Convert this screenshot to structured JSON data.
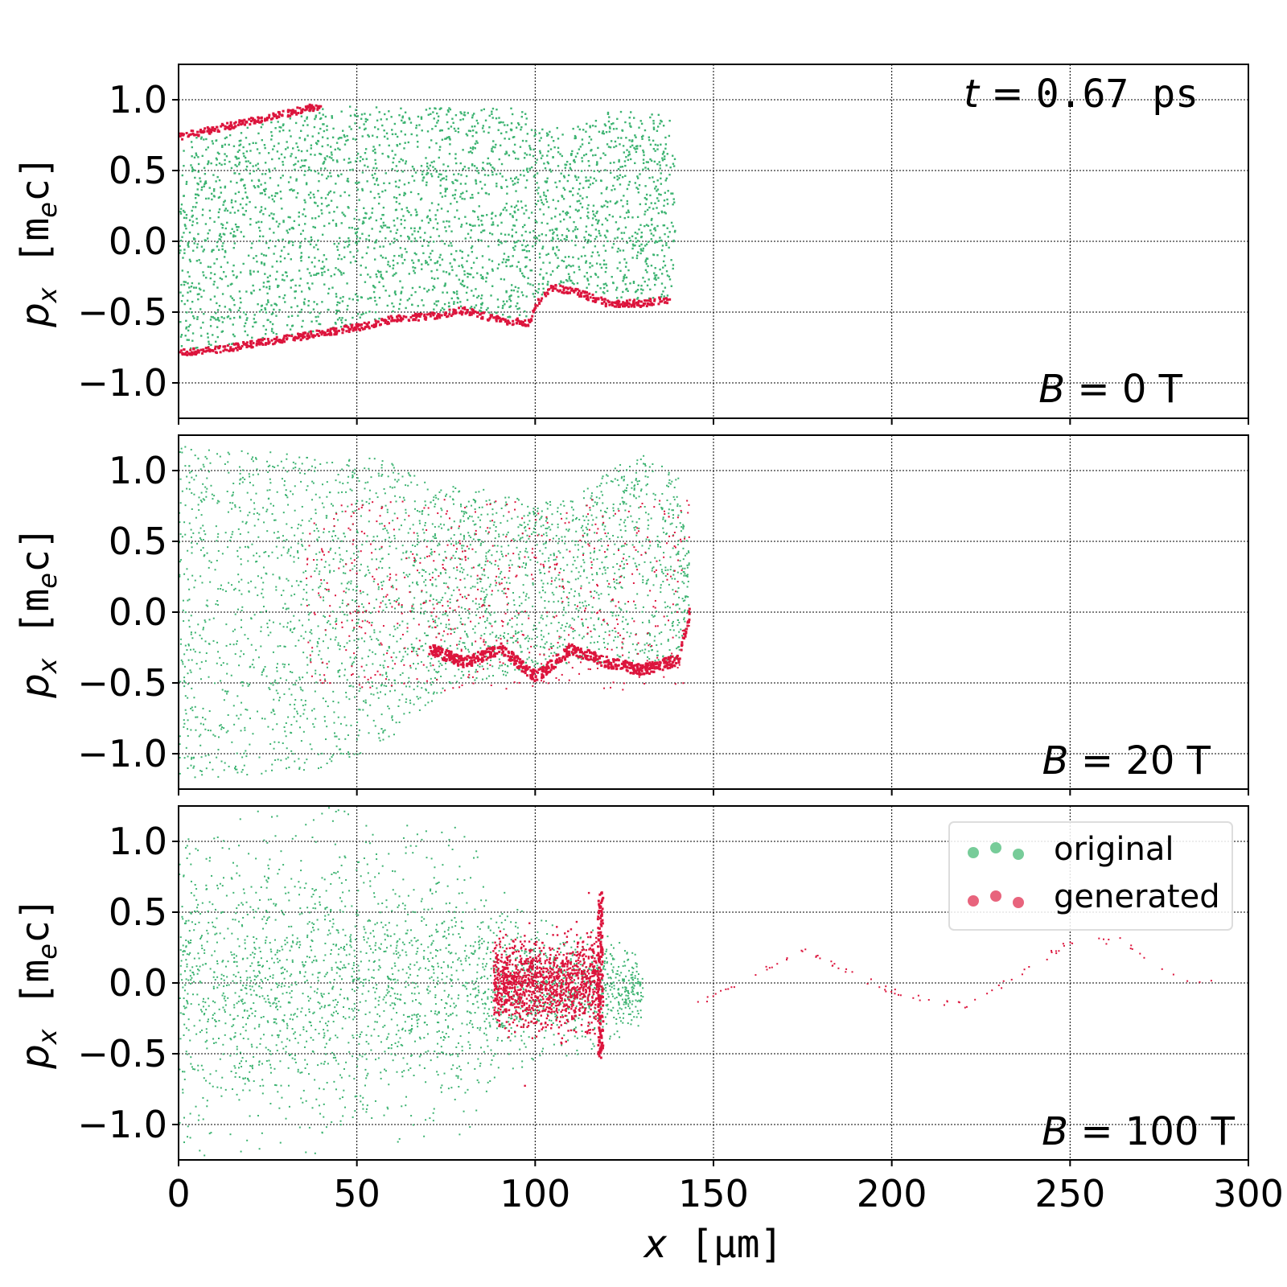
{
  "figure": {
    "time_label": {
      "lhs": "t",
      "eq": " = ",
      "value": "0.67 ps"
    },
    "xlabel": {
      "symbol": "x",
      "unit": "μm"
    },
    "ylabel": {
      "symbol": "p",
      "sub": "x",
      "unit_pre": "m",
      "unit_sub": "e",
      "unit_post": "c"
    },
    "x_ticks": [
      "0",
      "50",
      "100",
      "150",
      "200",
      "250",
      "300"
    ],
    "y_ticks": [
      "1.0",
      "0.5",
      "0.0",
      "−0.5",
      "−1.0"
    ],
    "legend": {
      "original": "original",
      "generated": "generated"
    },
    "colors": {
      "original": "#3cb371",
      "generated": "#dc143c",
      "legend_original": "#77cc99",
      "legend_generated": "#e8647d"
    },
    "panels": [
      {
        "annotation": {
          "lhs": "B",
          "eq": " = ",
          "value": "0 T"
        }
      },
      {
        "annotation": {
          "lhs": "B",
          "eq": " = ",
          "value": "20 T"
        }
      },
      {
        "annotation": {
          "lhs": "B",
          "eq": " = ",
          "value": "100 T"
        }
      }
    ]
  },
  "chart_data": [
    {
      "type": "scatter",
      "title": "",
      "annotation": "B = 0 T",
      "xlabel": "x [μm]",
      "ylabel": "p_x [m_e c]",
      "xlim": [
        0,
        300
      ],
      "ylim": [
        -1.25,
        1.25
      ],
      "grid": true,
      "legend": "none",
      "series": [
        {
          "name": "original",
          "envelope_x": [
            0,
            10,
            20,
            30,
            40,
            50,
            60,
            70,
            80,
            90,
            98,
            100,
            104,
            110,
            120,
            130,
            138,
            139
          ],
          "envelope_upper": [
            0.72,
            0.76,
            0.82,
            0.88,
            0.96,
            0.96,
            0.95,
            0.95,
            0.95,
            0.95,
            0.94,
            0.78,
            0.82,
            0.8,
            0.92,
            0.93,
            0.9,
            0.6
          ],
          "envelope_lower": [
            -0.76,
            -0.74,
            -0.7,
            -0.66,
            -0.63,
            -0.58,
            -0.52,
            -0.5,
            -0.46,
            -0.53,
            -0.55,
            -0.42,
            -0.3,
            -0.32,
            -0.4,
            -0.41,
            -0.38,
            0.0
          ]
        },
        {
          "name": "generated",
          "upper_edge_x": [
            0,
            10,
            20,
            30,
            40
          ],
          "upper_edge_y": [
            0.75,
            0.8,
            0.86,
            0.91,
            0.97
          ],
          "lower_edge_x": [
            0,
            10,
            20,
            30,
            40,
            50,
            60,
            70,
            80,
            90,
            98,
            100,
            104,
            110,
            120,
            130,
            138
          ],
          "lower_edge_y": [
            -0.78,
            -0.76,
            -0.72,
            -0.68,
            -0.64,
            -0.6,
            -0.54,
            -0.52,
            -0.48,
            -0.55,
            -0.57,
            -0.44,
            -0.32,
            -0.34,
            -0.43,
            -0.43,
            -0.4
          ]
        }
      ]
    },
    {
      "type": "scatter",
      "title": "",
      "annotation": "B = 20 T",
      "xlabel": "x [μm]",
      "ylabel": "p_x [m_e c]",
      "xlim": [
        0,
        300
      ],
      "ylim": [
        -1.25,
        1.25
      ],
      "grid": true,
      "legend": "none",
      "series": [
        {
          "name": "original",
          "envelope_x": [
            0,
            20,
            40,
            60,
            70,
            80,
            100,
            110,
            120,
            130,
            140,
            143
          ],
          "envelope_upper": [
            1.2,
            1.15,
            1.1,
            1.1,
            0.9,
            0.9,
            0.8,
            0.8,
            1.0,
            1.15,
            0.95,
            0.4
          ],
          "envelope_lower": [
            -1.2,
            -1.15,
            -1.1,
            -0.9,
            -0.65,
            -0.5,
            -0.4,
            -0.35,
            -0.35,
            -0.35,
            -0.33,
            0.0
          ]
        },
        {
          "name": "generated",
          "lower_edge_x": [
            70,
            80,
            90,
            100,
            110,
            120,
            130,
            140,
            143
          ],
          "lower_edge_y": [
            -0.25,
            -0.35,
            -0.25,
            -0.45,
            -0.25,
            -0.35,
            -0.4,
            -0.33,
            0.0
          ]
        }
      ]
    },
    {
      "type": "scatter",
      "title": "",
      "annotation": "B = 100 T",
      "xlabel": "x [μm]",
      "ylabel": "p_x [m_e c]",
      "xlim": [
        0,
        300
      ],
      "ylim": [
        -1.25,
        1.25
      ],
      "grid": true,
      "legend": "top-right",
      "series": [
        {
          "name": "original",
          "envelope_x": [
            0,
            40,
            80,
            88,
            100,
            120,
            130
          ],
          "envelope_upper": [
            1.25,
            1.25,
            1.1,
            0.7,
            0.5,
            0.35,
            0.2
          ],
          "envelope_lower": [
            -1.25,
            -1.25,
            -1.1,
            -0.7,
            -0.6,
            -0.45,
            -0.3
          ]
        },
        {
          "name": "generated",
          "core_x": [
            88,
            118
          ],
          "core_halfwidth": 0.25,
          "spike_x": 118,
          "spike_y": [
            -0.52,
            0.66
          ],
          "trail_x": [
            145,
            160,
            175,
            190,
            205,
            220,
            235,
            250,
            265,
            280,
            290
          ],
          "trail_y": [
            -0.15,
            0.05,
            0.25,
            0.05,
            -0.1,
            -0.15,
            0.05,
            0.3,
            0.3,
            0.05,
            0.02
          ]
        }
      ]
    }
  ]
}
